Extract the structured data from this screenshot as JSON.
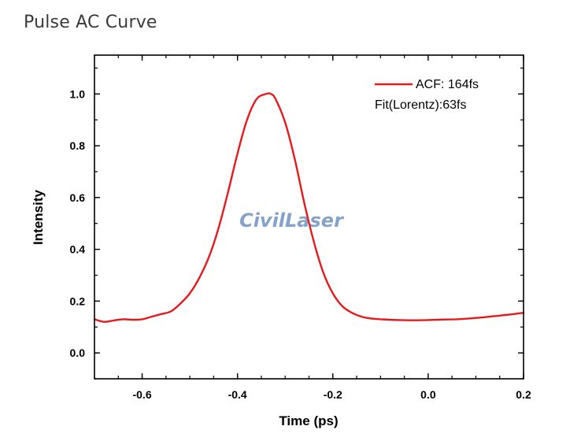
{
  "page": {
    "title": "Pulse AC Curve"
  },
  "watermark": {
    "text": "CivilLaser",
    "color": "#6f93c4"
  },
  "chart_data": {
    "type": "line",
    "title": "",
    "xlabel": "Time (ps)",
    "ylabel": "Intensity",
    "xlim": [
      -0.7,
      0.2
    ],
    "ylim": [
      -0.1,
      1.15
    ],
    "x_ticks": [
      -0.6,
      -0.4,
      -0.2,
      0.0,
      0.2
    ],
    "x_tick_labels": [
      "-0.6",
      "-0.4",
      "-0.2",
      "0.0",
      "0.2"
    ],
    "y_ticks": [
      0.0,
      0.2,
      0.4,
      0.6,
      0.8,
      1.0
    ],
    "y_tick_labels": [
      "0.0",
      "0.2",
      "0.4",
      "0.6",
      "0.8",
      "1.0"
    ],
    "grid": false,
    "legend_position": "top-right",
    "legend": [
      "ACF: 164fs",
      "Fit(Lorentz):63fs"
    ],
    "series": [
      {
        "name": "ACF: 164fs",
        "color": "#e41a1c",
        "x": [
          -0.7,
          -0.68,
          -0.66,
          -0.64,
          -0.62,
          -0.6,
          -0.58,
          -0.56,
          -0.54,
          -0.52,
          -0.5,
          -0.48,
          -0.46,
          -0.44,
          -0.42,
          -0.4,
          -0.38,
          -0.36,
          -0.34,
          -0.33,
          -0.32,
          -0.3,
          -0.28,
          -0.26,
          -0.24,
          -0.22,
          -0.2,
          -0.18,
          -0.16,
          -0.14,
          -0.12,
          -0.1,
          -0.08,
          -0.06,
          -0.04,
          -0.02,
          0.0,
          0.02,
          0.04,
          0.06,
          0.08,
          0.1,
          0.12,
          0.14,
          0.16,
          0.18,
          0.2
        ],
        "y": [
          0.13,
          0.12,
          0.125,
          0.13,
          0.128,
          0.13,
          0.14,
          0.15,
          0.16,
          0.19,
          0.23,
          0.29,
          0.37,
          0.48,
          0.62,
          0.77,
          0.9,
          0.98,
          1.0,
          1.0,
          0.98,
          0.89,
          0.75,
          0.58,
          0.43,
          0.31,
          0.23,
          0.18,
          0.155,
          0.14,
          0.133,
          0.13,
          0.128,
          0.127,
          0.126,
          0.126,
          0.127,
          0.128,
          0.129,
          0.13,
          0.132,
          0.135,
          0.138,
          0.142,
          0.146,
          0.15,
          0.155
        ]
      }
    ]
  }
}
